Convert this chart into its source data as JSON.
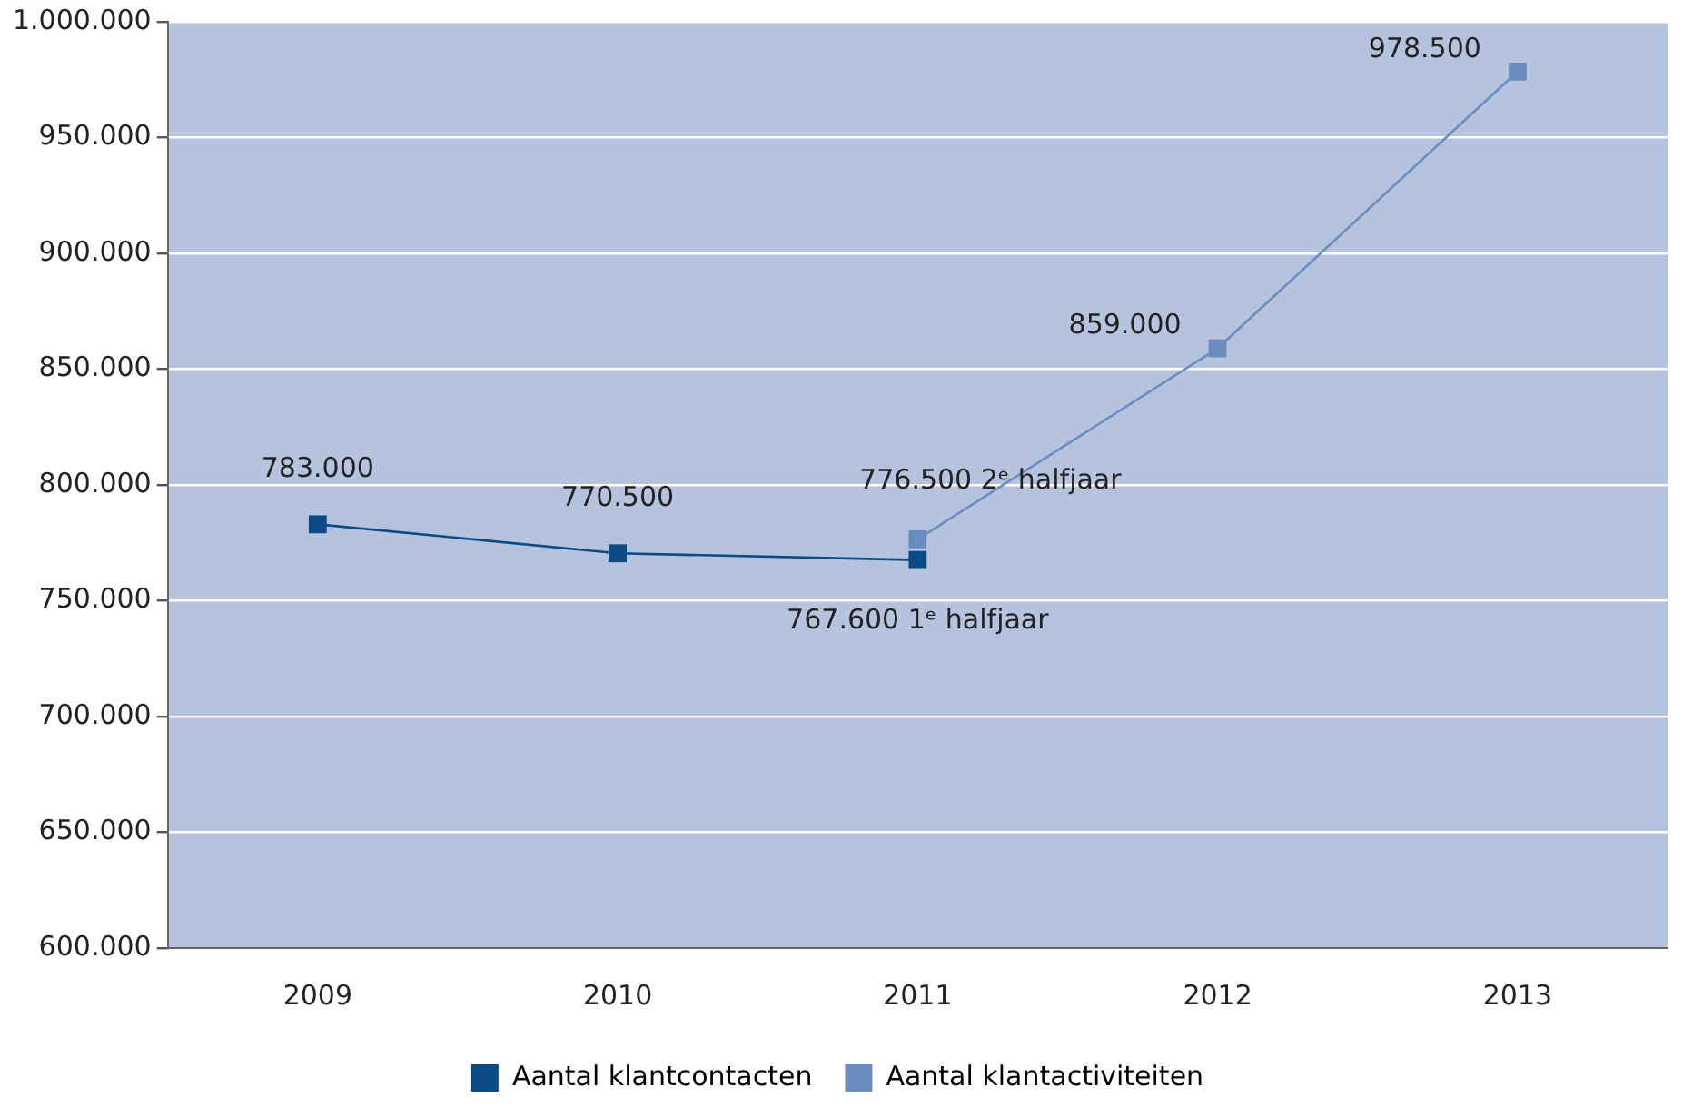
{
  "chart_data": {
    "type": "line",
    "categories": [
      "2009",
      "2010",
      "2011",
      "2012",
      "2013"
    ],
    "series": [
      {
        "name": "Aantal klantcontacten",
        "color": "#0b4a85",
        "values": [
          783000,
          770500,
          767600,
          null,
          null
        ],
        "value_labels": [
          "783.000",
          "770.500",
          "767.600 1ᵉ halfjaar",
          null,
          null
        ]
      },
      {
        "name": "Aantal klantactiviteiten",
        "color": "#6b8cbf",
        "values": [
          null,
          null,
          776500,
          859000,
          978500
        ],
        "value_labels": [
          null,
          null,
          "776.500 2ᵉ halfjaar",
          "859.000",
          "978.500"
        ]
      }
    ],
    "ylim": [
      600000,
      1000000
    ],
    "yticks": [
      {
        "value": 600000,
        "label": "600.000"
      },
      {
        "value": 650000,
        "label": "650.000"
      },
      {
        "value": 700000,
        "label": "700.000"
      },
      {
        "value": 750000,
        "label": "750.000"
      },
      {
        "value": 800000,
        "label": "800.000"
      },
      {
        "value": 850000,
        "label": "850.000"
      },
      {
        "value": 900000,
        "label": "900.000"
      },
      {
        "value": 950000,
        "label": "950.000"
      },
      {
        "value": 1000000,
        "label": "1.000.000"
      }
    ],
    "grid": "y",
    "legend": "bottom",
    "marker": "square",
    "line_style": "solid"
  }
}
